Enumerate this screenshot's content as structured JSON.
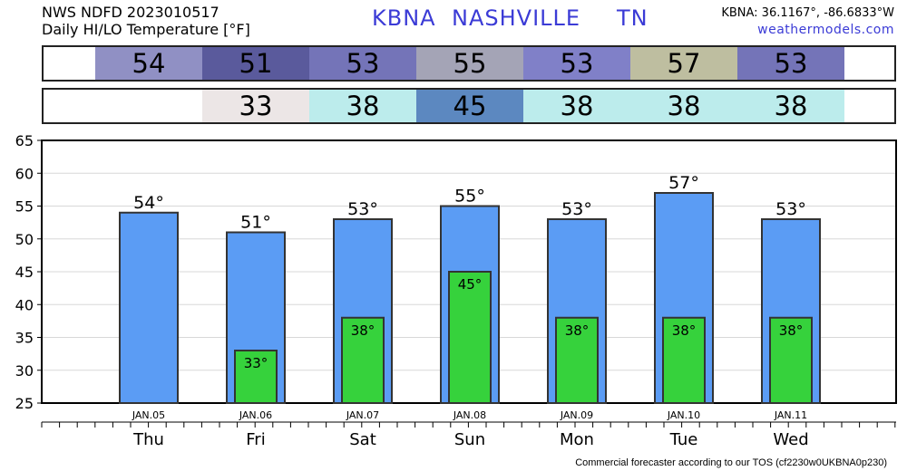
{
  "header": {
    "line1": "NWS NDFD 2023010517",
    "line2": "Daily HI/LO Temperature [°F]",
    "station": "KBNA",
    "city": "NASHVILLE",
    "state": "TN",
    "coords": "KBNA: 36.1167°, -86.6833°W",
    "site": "weathermodels.com"
  },
  "footer": "Commercial forecaster according to our TOS (cf2230w0UKBNA0p230)",
  "hi_strip": [
    {
      "value": "54",
      "color": "#9090c4"
    },
    {
      "value": "51",
      "color": "#5a5a9c"
    },
    {
      "value": "53",
      "color": "#7474b8"
    },
    {
      "value": "55",
      "color": "#a4a4b6"
    },
    {
      "value": "53",
      "color": "#8080c8"
    },
    {
      "value": "57",
      "color": "#bebea0"
    },
    {
      "value": "53",
      "color": "#7474b8"
    }
  ],
  "lo_strip": [
    {
      "value": "",
      "color": "#ffffff"
    },
    {
      "value": "33",
      "color": "#ece6e6"
    },
    {
      "value": "38",
      "color": "#bcecec"
    },
    {
      "value": "45",
      "color": "#5c88c0"
    },
    {
      "value": "38",
      "color": "#bcecec"
    },
    {
      "value": "38",
      "color": "#bcecec"
    },
    {
      "value": "38",
      "color": "#bcecec"
    }
  ],
  "chart_data": {
    "type": "bar",
    "categories": [
      "JAN.05",
      "JAN.06",
      "JAN.07",
      "JAN.08",
      "JAN.09",
      "JAN.10",
      "JAN.11"
    ],
    "days": [
      "Thu",
      "Fri",
      "Sat",
      "Sun",
      "Mon",
      "Tue",
      "Wed"
    ],
    "series": [
      {
        "name": "HI",
        "values": [
          54,
          51,
          53,
          55,
          53,
          57,
          53
        ],
        "labels": [
          "54°",
          "51°",
          "53°",
          "55°",
          "53°",
          "57°",
          "53°"
        ],
        "color": "#5b9cf4"
      },
      {
        "name": "LO",
        "values": [
          null,
          33,
          38,
          45,
          38,
          38,
          38
        ],
        "labels": [
          "",
          "33°",
          "38°",
          "45°",
          "38°",
          "38°",
          "38°"
        ],
        "color": "#36d23c"
      }
    ],
    "ylim": [
      25,
      65
    ],
    "yticks": [
      "25",
      "30",
      "35",
      "40",
      "45",
      "50",
      "55",
      "60",
      "65"
    ],
    "grid": true
  }
}
